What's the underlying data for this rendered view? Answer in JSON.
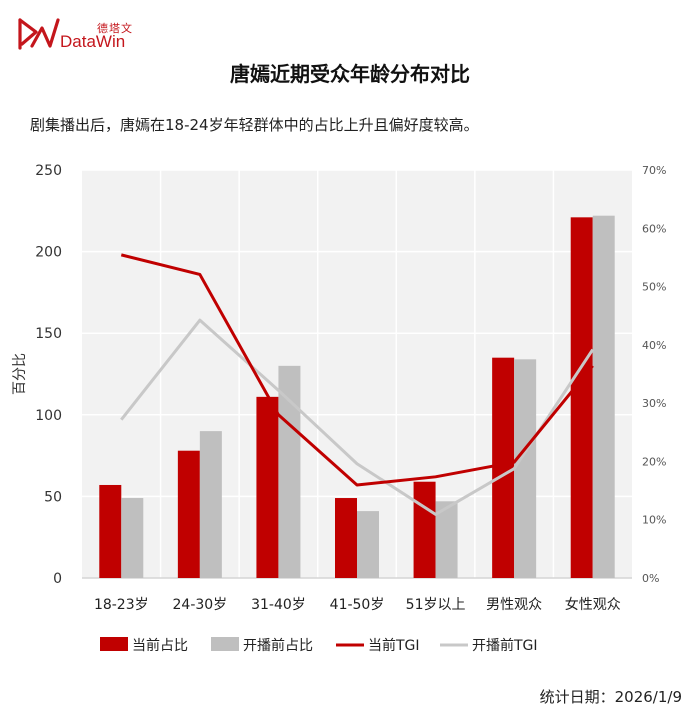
{
  "brand": {
    "name_cn": "德塔文",
    "name_en": "DataWin",
    "color": "#c4161c"
  },
  "title": "唐嫣近期受众年龄分布对比",
  "subtitle": "剧集播出后，唐嫣在18-24岁年轻群体中的占比上升且偏好度较高。",
  "footer": "统计日期：2026/1/9",
  "chart_data": {
    "type": "bar",
    "categories": [
      "18-23岁",
      "24-30岁",
      "31-40岁",
      "41-50岁",
      "51岁以上",
      "男性观众",
      "女性观众"
    ],
    "ylabel": "百分比",
    "ylim": [
      0,
      250
    ],
    "yticks": [
      0,
      50,
      100,
      150,
      200,
      250
    ],
    "y2lim": [
      0,
      70
    ],
    "y2ticks": [
      "0%",
      "10%",
      "20%",
      "30%",
      "40%",
      "50%",
      "60%",
      "70%"
    ],
    "grid": true,
    "legend_position": "bottom",
    "bar_series": [
      {
        "name": "当前占比",
        "color": "#c00000",
        "values": [
          57,
          78,
          111,
          49,
          59,
          135,
          221
        ]
      },
      {
        "name": "开播前占比",
        "color": "#bfbfbf",
        "values": [
          49,
          90,
          130,
          41,
          47,
          134,
          222
        ]
      }
    ],
    "line_series": [
      {
        "name": "当前TGI",
        "color": "#c00000",
        "values": [
          198,
          186,
          100,
          57,
          62,
          71,
          130
        ]
      },
      {
        "name": "开播前TGI",
        "color": "#c8c8c8",
        "values": [
          97,
          158,
          115,
          70,
          39,
          67,
          140
        ]
      }
    ]
  }
}
